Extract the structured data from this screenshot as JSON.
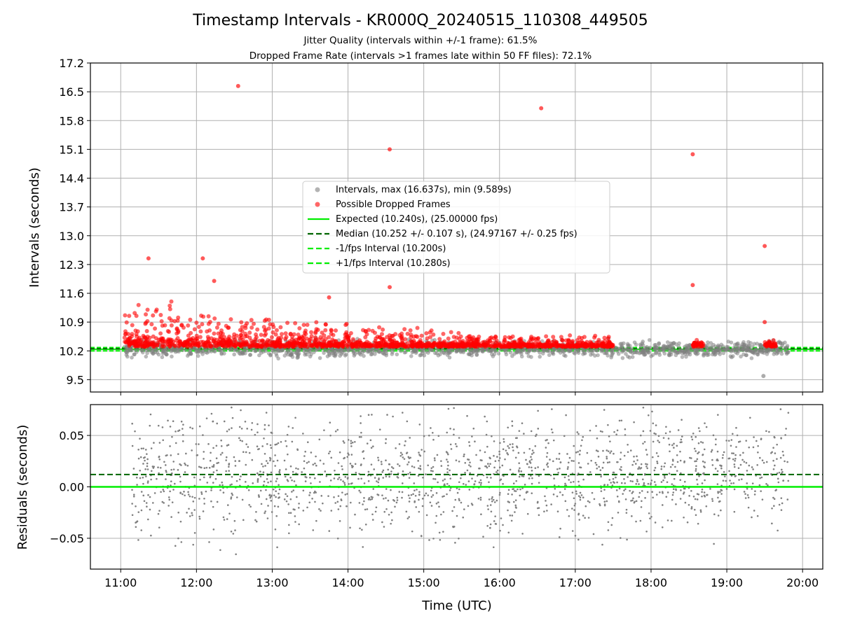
{
  "title": "Timestamp Intervals - KR000Q_20240515_110308_449505",
  "subtitle_1": "Jitter Quality (intervals within +/-1 frame): 61.5%",
  "subtitle_2": "Dropped Frame Rate (intervals >1 frames late within 50 FF files): 72.1%",
  "colors": {
    "intervals": "#808080",
    "dropped": "#ff0000",
    "expected": "#00ee00",
    "median": "#006400",
    "fps_bounds": "#00ee00",
    "grid": "#b0b0b0"
  },
  "chart_data": [
    {
      "id": "intervals",
      "type": "scatter",
      "ylabel": "Intervals (seconds)",
      "y_ticks": [
        "9.5",
        "10.2",
        "10.9",
        "11.6",
        "12.3",
        "13.0",
        "13.7",
        "14.4",
        "15.1",
        "15.8",
        "16.5",
        "17.2"
      ],
      "ylim": [
        9.2,
        17.2
      ],
      "xlim": [
        "10:36",
        "20:16"
      ],
      "grid": true,
      "legend_position": "center",
      "legend": [
        {
          "label": "Intervals, max (16.637s), min (9.589s)",
          "kind": "dot",
          "color": "#808080"
        },
        {
          "label": "Possible Dropped Frames",
          "kind": "dot",
          "color": "#ff0000"
        },
        {
          "label": "Expected (10.240s), (25.00000 fps)",
          "kind": "solid",
          "color": "#00ee00"
        },
        {
          "label": "Median (10.252 +/- 0.107 s), (24.97167 +/- 0.25 fps)",
          "kind": "dashed",
          "color": "#006400"
        },
        {
          "label": "-1/fps Interval (10.200s)",
          "kind": "dashed",
          "color": "#00ee00"
        },
        {
          "label": "+1/fps Interval (10.280s)",
          "kind": "dashed",
          "color": "#00ee00"
        }
      ],
      "reference_lines": {
        "expected": 10.24,
        "median": 10.252,
        "minus_1_fps": 10.2,
        "plus_1_fps": 10.28
      },
      "intervals_max": 16.637,
      "intervals_min": 9.589,
      "time_range": [
        "11:03",
        "19:49"
      ],
      "notable_outliers": [
        {
          "time": "11:22",
          "interval": 12.45
        },
        {
          "time": "12:05",
          "interval": 12.45
        },
        {
          "time": "12:14",
          "interval": 11.9
        },
        {
          "time": "12:33",
          "interval": 16.64
        },
        {
          "time": "13:45",
          "interval": 11.5
        },
        {
          "time": "14:33",
          "interval": 15.1
        },
        {
          "time": "14:33",
          "interval": 11.75
        },
        {
          "time": "16:33",
          "interval": 16.1
        },
        {
          "time": "18:33",
          "interval": 14.98
        },
        {
          "time": "18:33",
          "interval": 11.8
        },
        {
          "time": "19:30",
          "interval": 12.75
        },
        {
          "time": "19:30",
          "interval": 10.9
        },
        {
          "time": "19:29",
          "interval": 9.59
        }
      ]
    },
    {
      "id": "residuals",
      "type": "scatter",
      "xlabel": "Time (UTC)",
      "ylabel": "Residuals (seconds)",
      "y_ticks": [
        "0.05",
        "0.00",
        "−0.05"
      ],
      "x_ticks": [
        "11:00",
        "12:00",
        "13:00",
        "14:00",
        "15:00",
        "16:00",
        "17:00",
        "18:00",
        "19:00",
        "20:00"
      ],
      "ylim": [
        -0.08,
        0.08
      ],
      "xlim": [
        "10:36",
        "20:16"
      ],
      "grid": true,
      "reference_lines": {
        "zero": 0.0,
        "median_offset": 0.012
      }
    }
  ]
}
